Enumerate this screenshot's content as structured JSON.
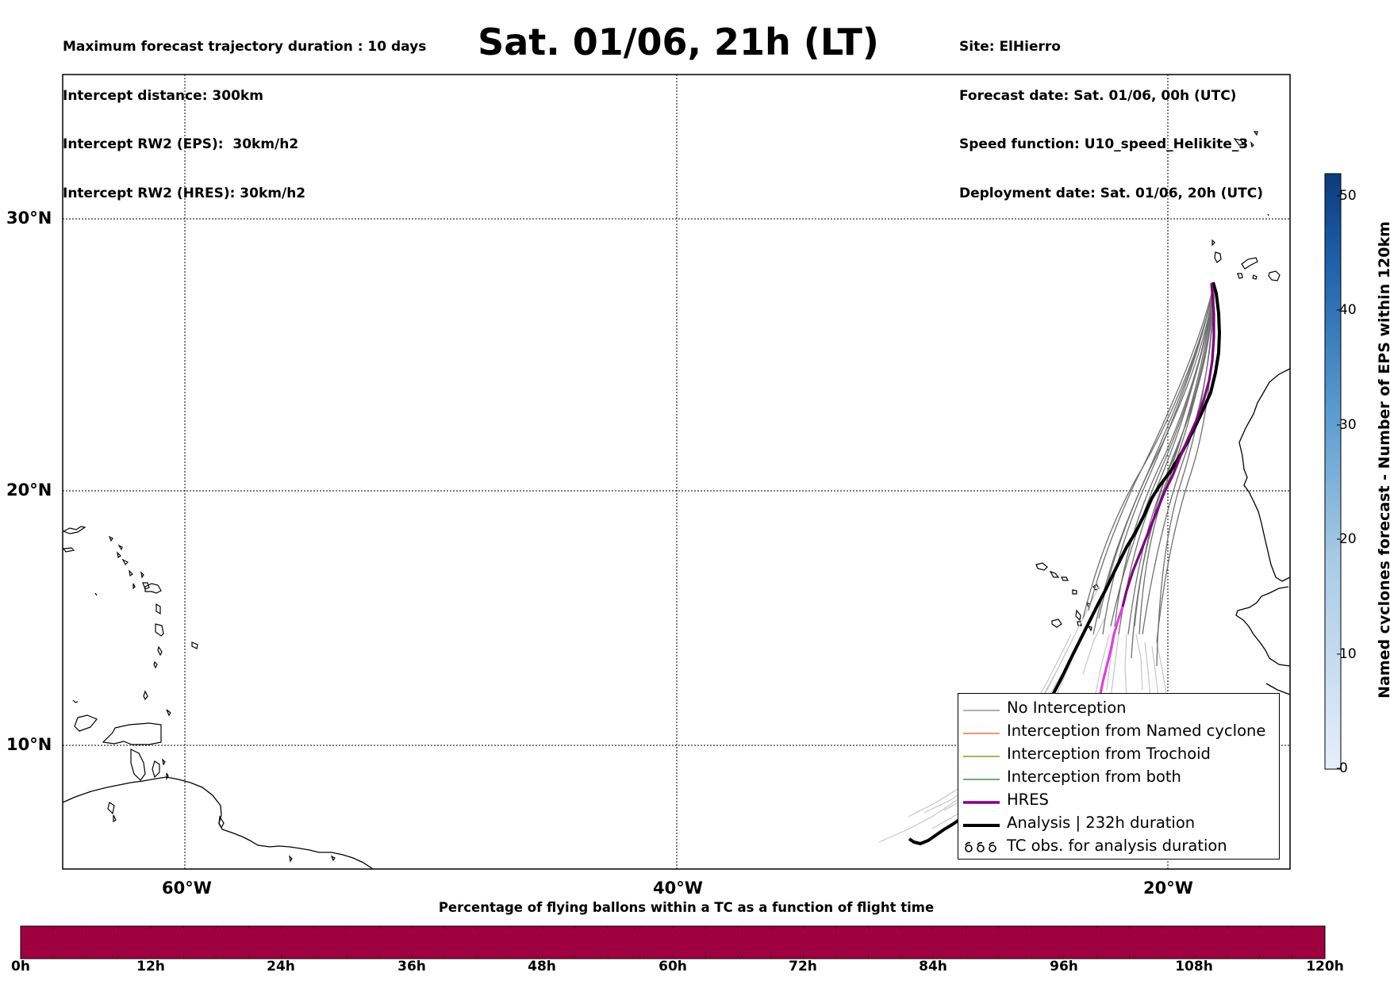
{
  "header": {
    "left_lines": [
      "Maximum forecast trajectory duration : 10 days",
      "Intercept distance: 300km",
      "Intercept RW2 (EPS):  30km/h2",
      "Intercept RW2 (HRES): 30km/h2"
    ],
    "title": "Sat. 01/06, 21h (LT)",
    "right_lines": [
      "Site: ElHierro",
      "Forecast date: Sat. 01/06, 00h (UTC)",
      "Speed function: U10_speed_Helikite_3",
      "Deployment date: Sat. 01/06, 20h (UTC)"
    ]
  },
  "map": {
    "lon_labels": [
      "60°W",
      "40°W",
      "20°W"
    ],
    "lat_labels": [
      "30°N",
      "20°N",
      "10°N"
    ],
    "colors": {
      "no_interception": "#808080",
      "named_cyclone": "#e8541e",
      "trochoid": "#808000",
      "both": "#1a7a1a",
      "hres": "#800080",
      "analysis": "#000000"
    }
  },
  "legend": {
    "items": [
      {
        "label": "No Interception",
        "style": "thin-gray-line"
      },
      {
        "label": "Interception from Named cyclone",
        "style": "thin-orange-line"
      },
      {
        "label": "Interception from Trochoid",
        "style": "thin-olive-line"
      },
      {
        "label": "Interception from both",
        "style": "thin-green-line"
      },
      {
        "label": "HRES",
        "style": "thick-purple-line"
      },
      {
        "label": "Analysis | 232h duration",
        "style": "thick-black-line"
      },
      {
        "label": "TC obs. for analysis duration",
        "style": "cyclone-symbols-icon"
      }
    ]
  },
  "colorbar_vertical": {
    "title": "Named cyclones forecast - Number of EPS within 120km",
    "ticks": [
      "0",
      "10",
      "20",
      "30",
      "40",
      "50"
    ],
    "range": [
      0,
      52
    ],
    "color_low": "#e6eefa",
    "color_high": "#0b3b7a"
  },
  "colorbar_horizontal": {
    "title": "Percentage of flying ballons within a TC as a function of flight time",
    "ticks": [
      "0h",
      "12h",
      "24h",
      "36h",
      "48h",
      "60h",
      "72h",
      "84h",
      "96h",
      "108h",
      "120h"
    ],
    "fill_color": "#9e0040"
  }
}
